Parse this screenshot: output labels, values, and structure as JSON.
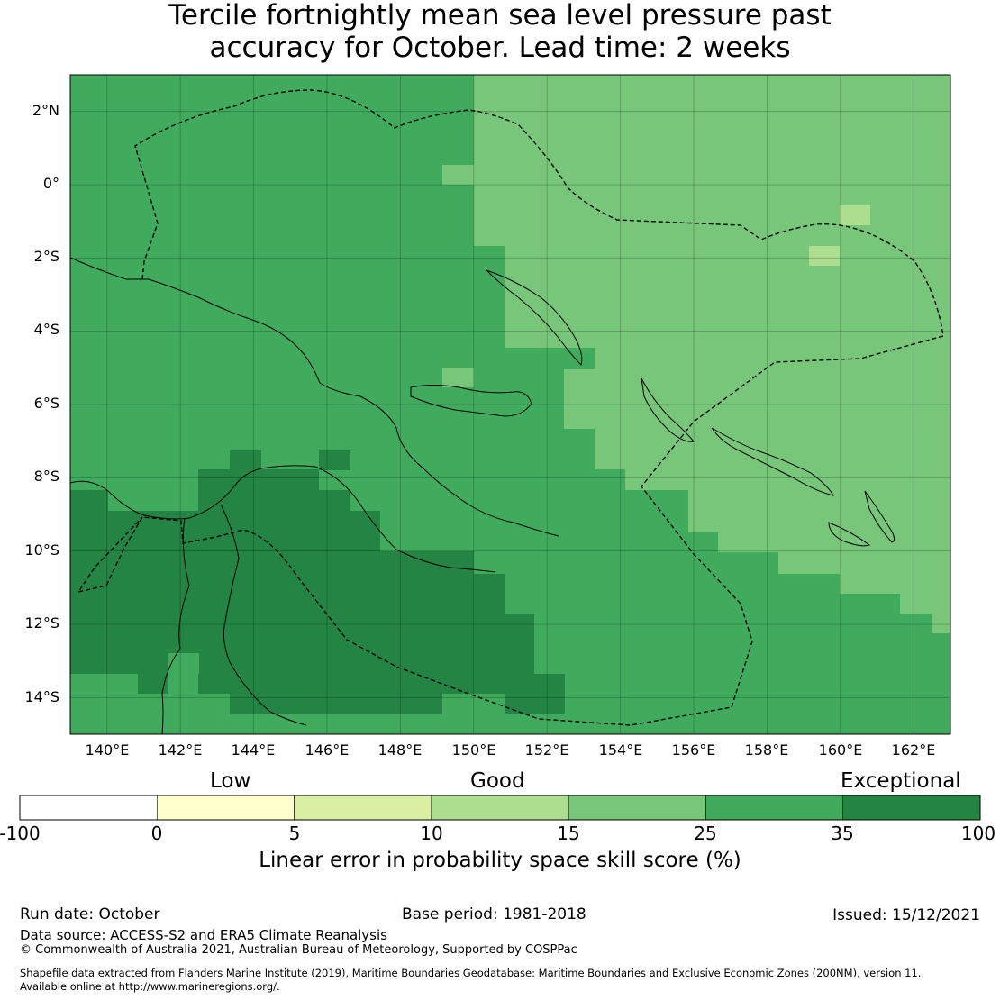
{
  "title": {
    "line1": "Tercile fortnightly mean sea level pressure past",
    "line2": "accuracy for October. Lead time: 2 weeks"
  },
  "map": {
    "lon_range": [
      139,
      163
    ],
    "lat_range": [
      -15,
      3
    ],
    "lat_labels": [
      "2°N",
      "0°",
      "2°S",
      "4°S",
      "6°S",
      "8°S",
      "10°S",
      "12°S",
      "14°S"
    ],
    "lon_labels": [
      "140°E",
      "142°E",
      "144°E",
      "146°E",
      "148°E",
      "150°E",
      "152°E",
      "154°E",
      "156°E",
      "158°E",
      "160°E",
      "162°E"
    ],
    "colors": {
      "band_15_25": "#78c679",
      "band_25_35": "#41ab5d",
      "band_35_100": "#238443",
      "band_10_15": "#addd8e"
    }
  },
  "colorbar": {
    "categories": [
      "Low",
      "Good",
      "Exceptional"
    ],
    "ticks": [
      "-100",
      "0",
      "5",
      "10",
      "15",
      "25",
      "35",
      "100"
    ],
    "colors": [
      "#ffffff",
      "#ffffcc",
      "#d9f0a3",
      "#addd8e",
      "#78c679",
      "#41ab5d",
      "#238443"
    ],
    "label": "Linear error in probability space skill score (%)"
  },
  "footer": {
    "run_date": "Run date: October",
    "base_period": "Base period: 1981-2018",
    "issued": "Issued: 15/12/2021",
    "data_source": "Data source: ACCESS-S2 and ERA5 Climate Reanalysis",
    "copyright": "© Commonwealth of Australia 2021, Australian Bureau of Meteorology, Supported by COSPPac",
    "shapefile_1": "Shapefile data extracted from Flanders Marine Institute (2019), Maritime Boundaries Geodatabase: Maritime Boundaries and Exclusive Economic Zones (200NM), version 11.",
    "shapefile_2": "Available online at http://www.marineregions.org/."
  }
}
